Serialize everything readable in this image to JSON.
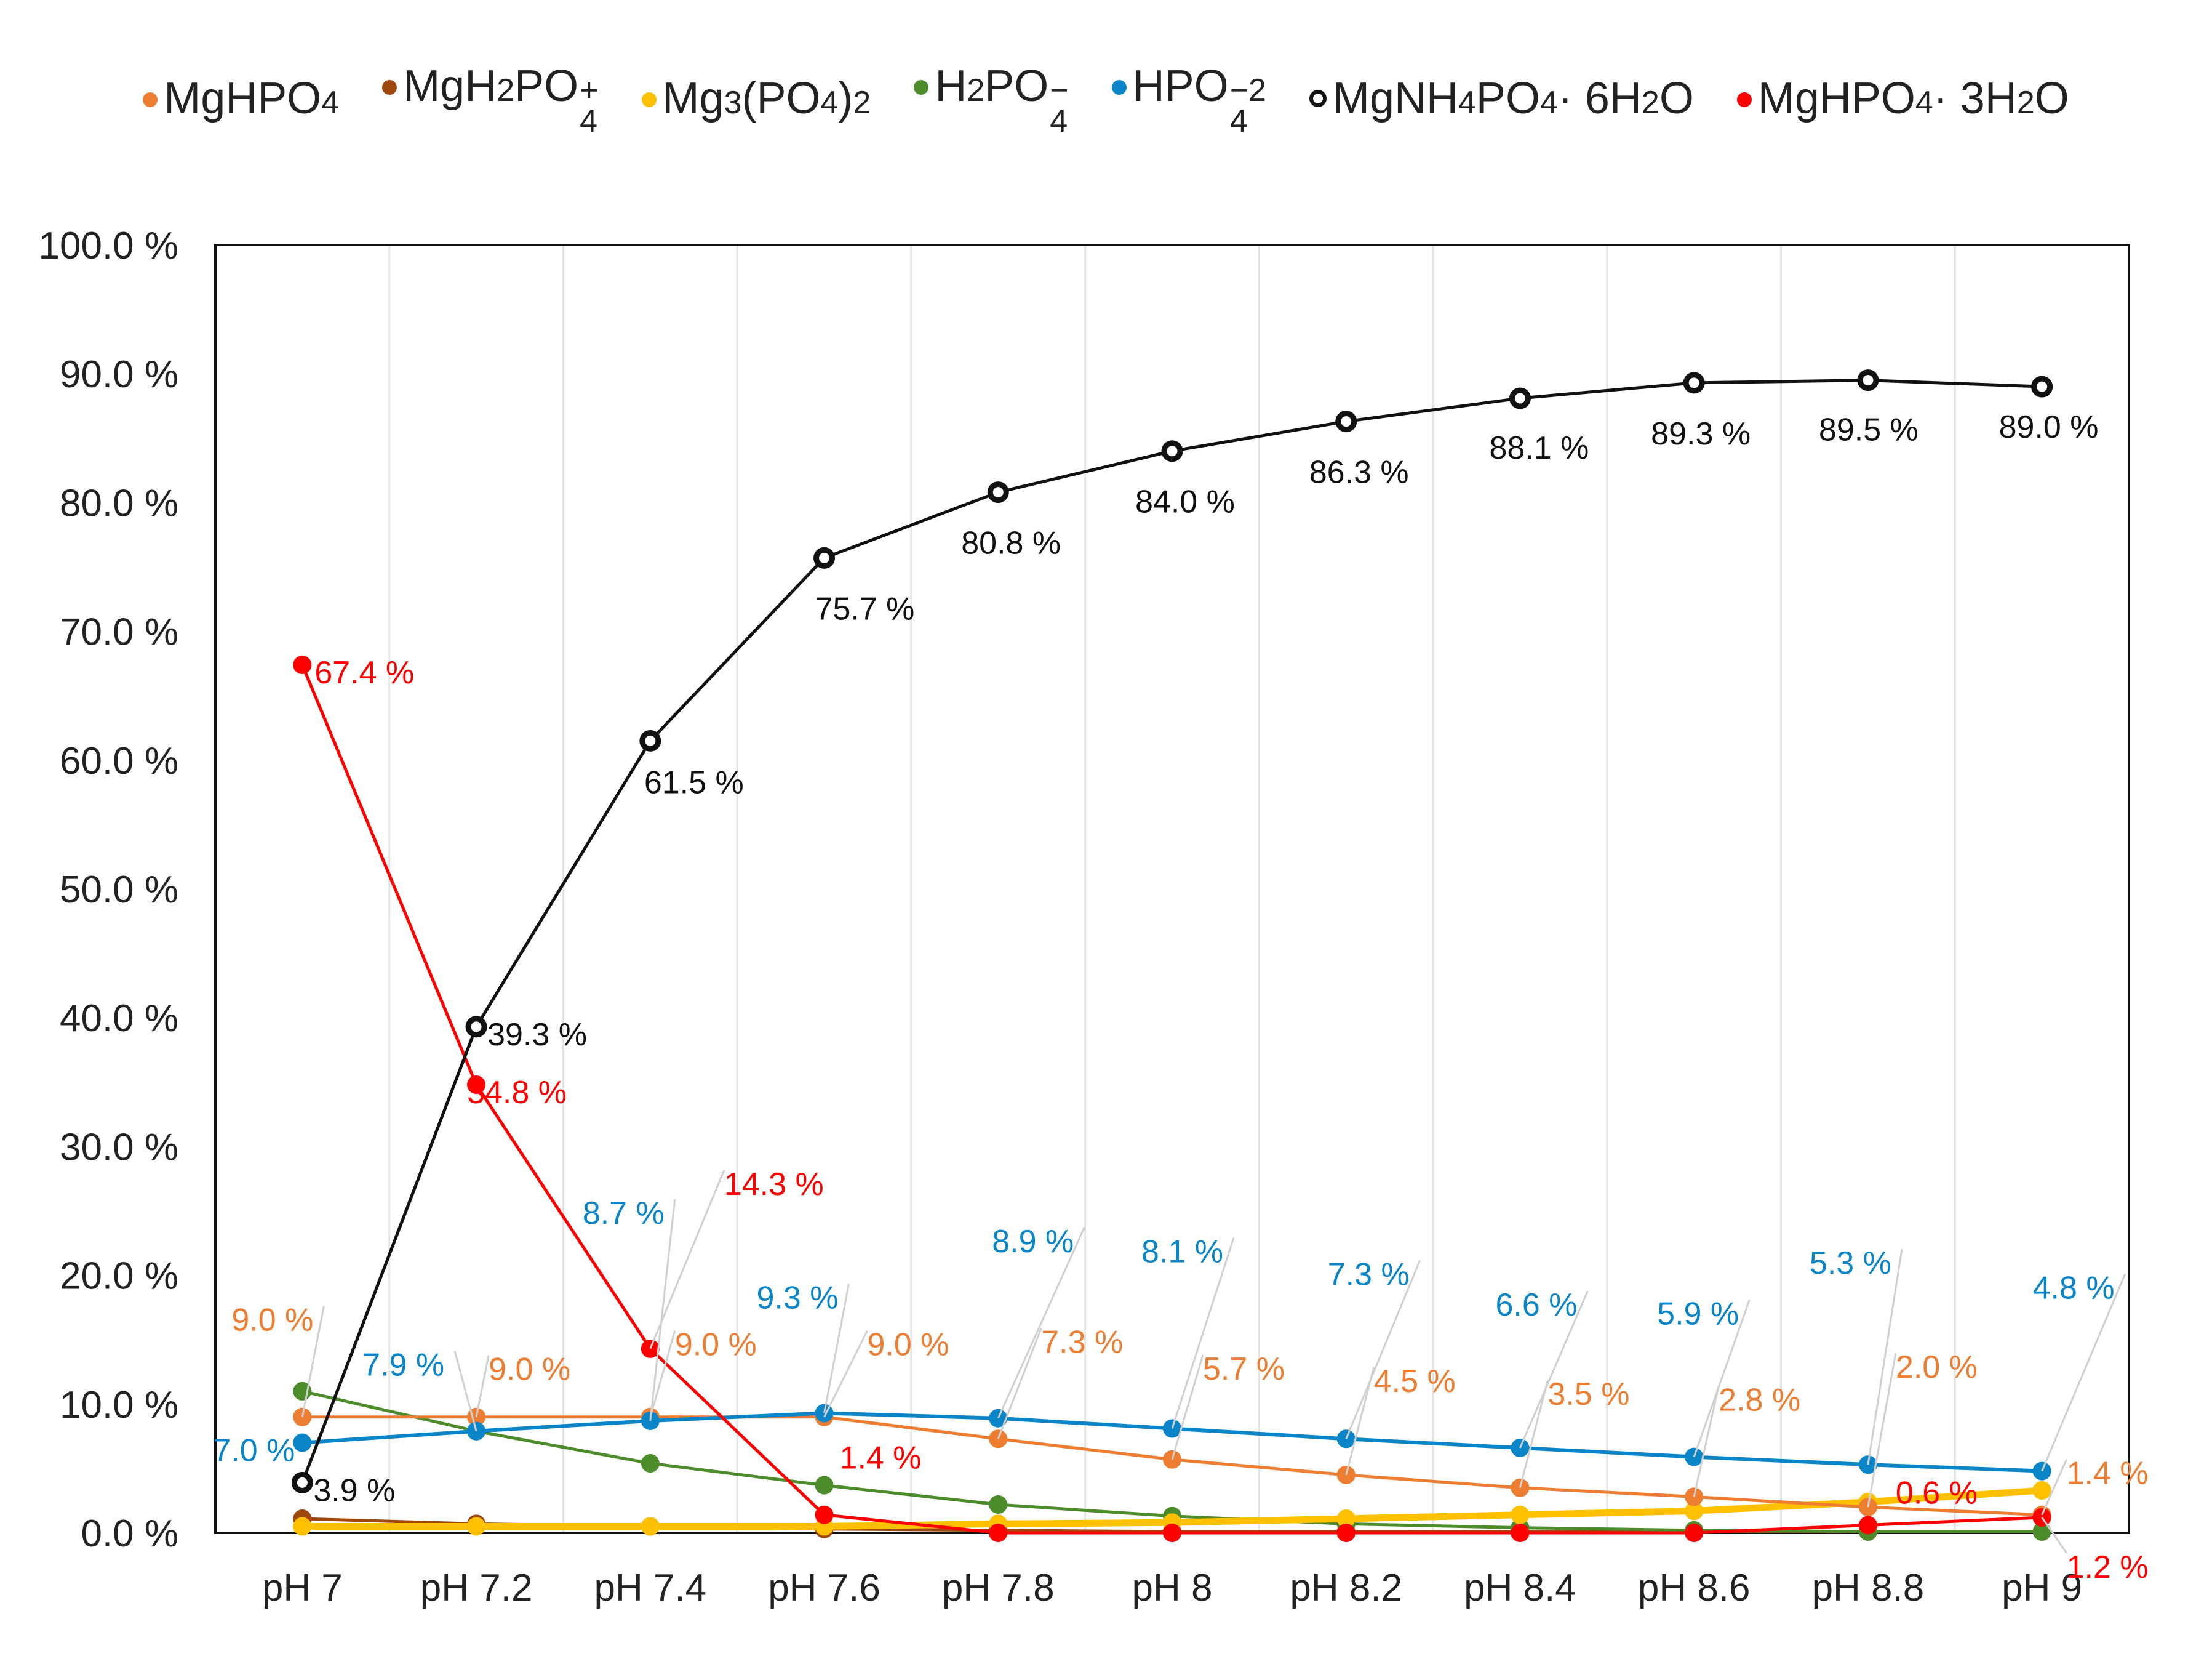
{
  "chart_data": {
    "type": "line",
    "title": "",
    "xlabel": "",
    "ylabel": "",
    "ylim": [
      0,
      100
    ],
    "y_ticks": [
      "0.0 %",
      "10.0 %",
      "20.0 %",
      "30.0 %",
      "40.0 %",
      "50.0 %",
      "60.0 %",
      "70.0 %",
      "80.0 %",
      "90.0 %",
      "100.0 %"
    ],
    "y_tick_values": [
      0,
      10,
      20,
      30,
      40,
      50,
      60,
      70,
      80,
      90,
      100
    ],
    "categories": [
      "pH 7",
      "pH 7.2",
      "pH 7.4",
      "pH 7.6",
      "pH 7.8",
      "pH 8",
      "pH 8.2",
      "pH 8.4",
      "pH 8.6",
      "pH 8.8",
      "pH 9"
    ],
    "grid": true,
    "legend_position": "top",
    "series": [
      {
        "name": "MgHPO4",
        "legend": {
          "base": "MgHPO",
          "sub": "4",
          "sup": ""
        },
        "color": "#ED7D31",
        "values": [
          9.0,
          9.0,
          9.0,
          9.0,
          7.3,
          5.7,
          4.5,
          3.5,
          2.8,
          2.0,
          1.4
        ],
        "labels": [
          "9.0 %",
          "9.0 %",
          "9.0 %",
          "9.0 %",
          "7.3 %",
          "5.7 %",
          "4.5 %",
          "3.5 %",
          "2.8 %",
          "2.0 %",
          "1.4 %"
        ]
      },
      {
        "name": "MgH2PO4+",
        "legend": {
          "base": "MgH",
          "sub": "2",
          "base2": "PO",
          "sub2": "4",
          "sup": "+"
        },
        "color": "#9E480E",
        "values": [
          1.1,
          0.7,
          0.5,
          0.3,
          0.2,
          0.1,
          0.1,
          0.1,
          0.1,
          0.1,
          0.1
        ],
        "labels": []
      },
      {
        "name": "Mg3(PO4)2",
        "legend": {
          "base": "Mg",
          "sub": "3",
          "base2": "(PO",
          "sub2": "4",
          "base3": ")",
          "sub3": "2"
        },
        "color": "#FFC000",
        "values": [
          0.5,
          0.5,
          0.5,
          0.5,
          0.7,
          0.8,
          1.1,
          1.4,
          1.7,
          2.4,
          3.3
        ],
        "labels": []
      },
      {
        "name": "H2PO4-",
        "legend": {
          "base": "H",
          "sub": "2",
          "base2": "PO",
          "sub2": "4",
          "sup": "−"
        },
        "color": "#4C8C2B",
        "values": [
          11.0,
          7.9,
          5.4,
          3.7,
          2.2,
          1.3,
          0.7,
          0.4,
          0.2,
          0.1,
          0.1
        ],
        "labels": []
      },
      {
        "name": "HPO4-2",
        "legend": {
          "base": "HPO",
          "sub": "4",
          "sup": "−2"
        },
        "color": "#0A86C8",
        "values": [
          7.0,
          7.9,
          8.7,
          9.3,
          8.9,
          8.1,
          7.3,
          6.6,
          5.9,
          5.3,
          4.8
        ],
        "labels": [
          "7.0 %",
          "7.9 %",
          "8.7 %",
          "9.3 %",
          "8.9 %",
          "8.1 %",
          "7.3 %",
          "6.6 %",
          "5.9 %",
          "5.3 %",
          "4.8 %"
        ]
      },
      {
        "name": "MgNH4PO4·6H2O",
        "legend": {
          "base": "MgNH",
          "sub": "4",
          "base2": "PO",
          "sub2": "4",
          "base3": " · 6H",
          "sub3": "2",
          "base4": "O"
        },
        "color": "#111111",
        "values": [
          3.9,
          39.3,
          61.5,
          75.7,
          80.8,
          84.0,
          86.3,
          88.1,
          89.3,
          89.5,
          89.0
        ],
        "labels": [
          "3.9 %",
          "39.3 %",
          "61.5 %",
          "75.7 %",
          "80.8 %",
          "84.0 %",
          "86.3 %",
          "88.1 %",
          "89.3 %",
          "89.5 %",
          "89.0 %"
        ]
      },
      {
        "name": "MgHPO4·3H2O",
        "legend": {
          "base": "MgHPO",
          "sub": "4",
          "base2": " · 3H",
          "sub2": "2",
          "base3": "O"
        },
        "color": "#FF0000",
        "values": [
          67.4,
          34.8,
          14.3,
          1.4,
          0.0,
          0.0,
          0.0,
          0.0,
          0.0,
          0.6,
          1.2
        ],
        "labels": [
          "67.4 %",
          "34.8 %",
          "14.3 %",
          "1.4 %",
          "",
          "",
          "",
          "",
          "",
          "0.6 %",
          "1.2 %"
        ]
      }
    ]
  }
}
